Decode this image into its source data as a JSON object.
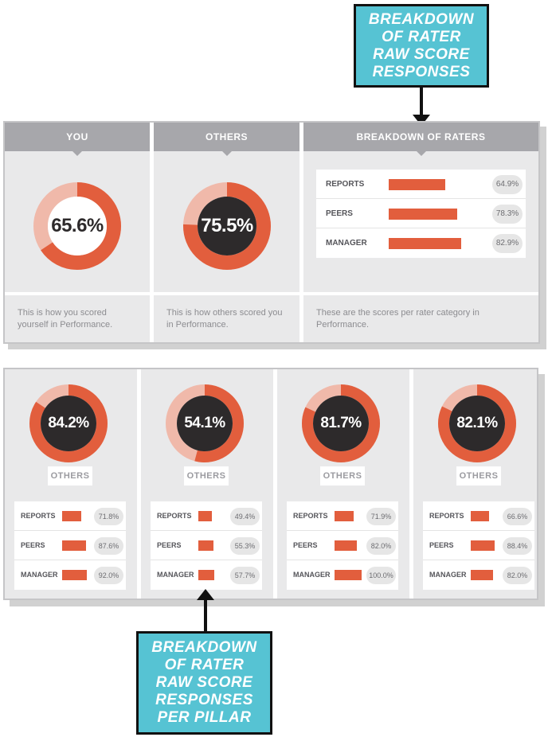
{
  "callouts": {
    "top": {
      "lines": [
        "BREAKDOWN",
        "OF RATER",
        "RAW SCORE",
        "RESPONSES"
      ]
    },
    "bottom": {
      "lines": [
        "BREAKDOWN",
        "OF RATER",
        "RAW SCORE",
        "RESPONSES",
        "PER PILLAR"
      ]
    }
  },
  "summary": {
    "you": {
      "header": "YOU",
      "score_label": "65.6%",
      "score": 65.6,
      "description": "This is how you scored yourself in Performance."
    },
    "others": {
      "header": "OTHERS",
      "score_label": "75.5%",
      "score": 75.5,
      "description": "This is how others scored you in Performance."
    },
    "breakdown": {
      "header": "BREAKDOWN OF RATERS",
      "rows": [
        {
          "label": "REPORTS",
          "value_label": "64.9%",
          "value": 64.9
        },
        {
          "label": "PEERS",
          "value_label": "78.3%",
          "value": 78.3
        },
        {
          "label": "MANAGER",
          "value_label": "82.9%",
          "value": 82.9
        }
      ],
      "description": "These are the scores per rater category in Performance."
    }
  },
  "pillars": [
    {
      "score_label": "84.2%",
      "score": 84.2,
      "badge": "OTHERS",
      "rows": [
        {
          "label": "REPORTS",
          "value_label": "71.8%",
          "value": 71.8
        },
        {
          "label": "PEERS",
          "value_label": "87.6%",
          "value": 87.6
        },
        {
          "label": "MANAGER",
          "value_label": "92.0%",
          "value": 92.0
        }
      ]
    },
    {
      "score_label": "54.1%",
      "score": 54.1,
      "badge": "OTHERS",
      "rows": [
        {
          "label": "REPORTS",
          "value_label": "49.4%",
          "value": 49.4
        },
        {
          "label": "PEERS",
          "value_label": "55.3%",
          "value": 55.3
        },
        {
          "label": "MANAGER",
          "value_label": "57.7%",
          "value": 57.7
        }
      ]
    },
    {
      "score_label": "81.7%",
      "score": 81.7,
      "badge": "OTHERS",
      "rows": [
        {
          "label": "REPORTS",
          "value_label": "71.9%",
          "value": 71.9
        },
        {
          "label": "PEERS",
          "value_label": "82.0%",
          "value": 82.0
        },
        {
          "label": "MANAGER",
          "value_label": "100.0%",
          "value": 100.0
        }
      ]
    },
    {
      "score_label": "82.1%",
      "score": 82.1,
      "badge": "OTHERS",
      "rows": [
        {
          "label": "REPORTS",
          "value_label": "66.6%",
          "value": 66.6
        },
        {
          "label": "PEERS",
          "value_label": "88.4%",
          "value": 88.4
        },
        {
          "label": "MANAGER",
          "value_label": "82.0%",
          "value": 82.0
        }
      ]
    }
  ],
  "colors": {
    "accent": "#e25e3d",
    "track_light": "#f0b9aa",
    "dark_center": "#2d2a2b",
    "callout": "#56c3d3",
    "header": "#a7a7ab",
    "panel": "#e9e9ea"
  }
}
